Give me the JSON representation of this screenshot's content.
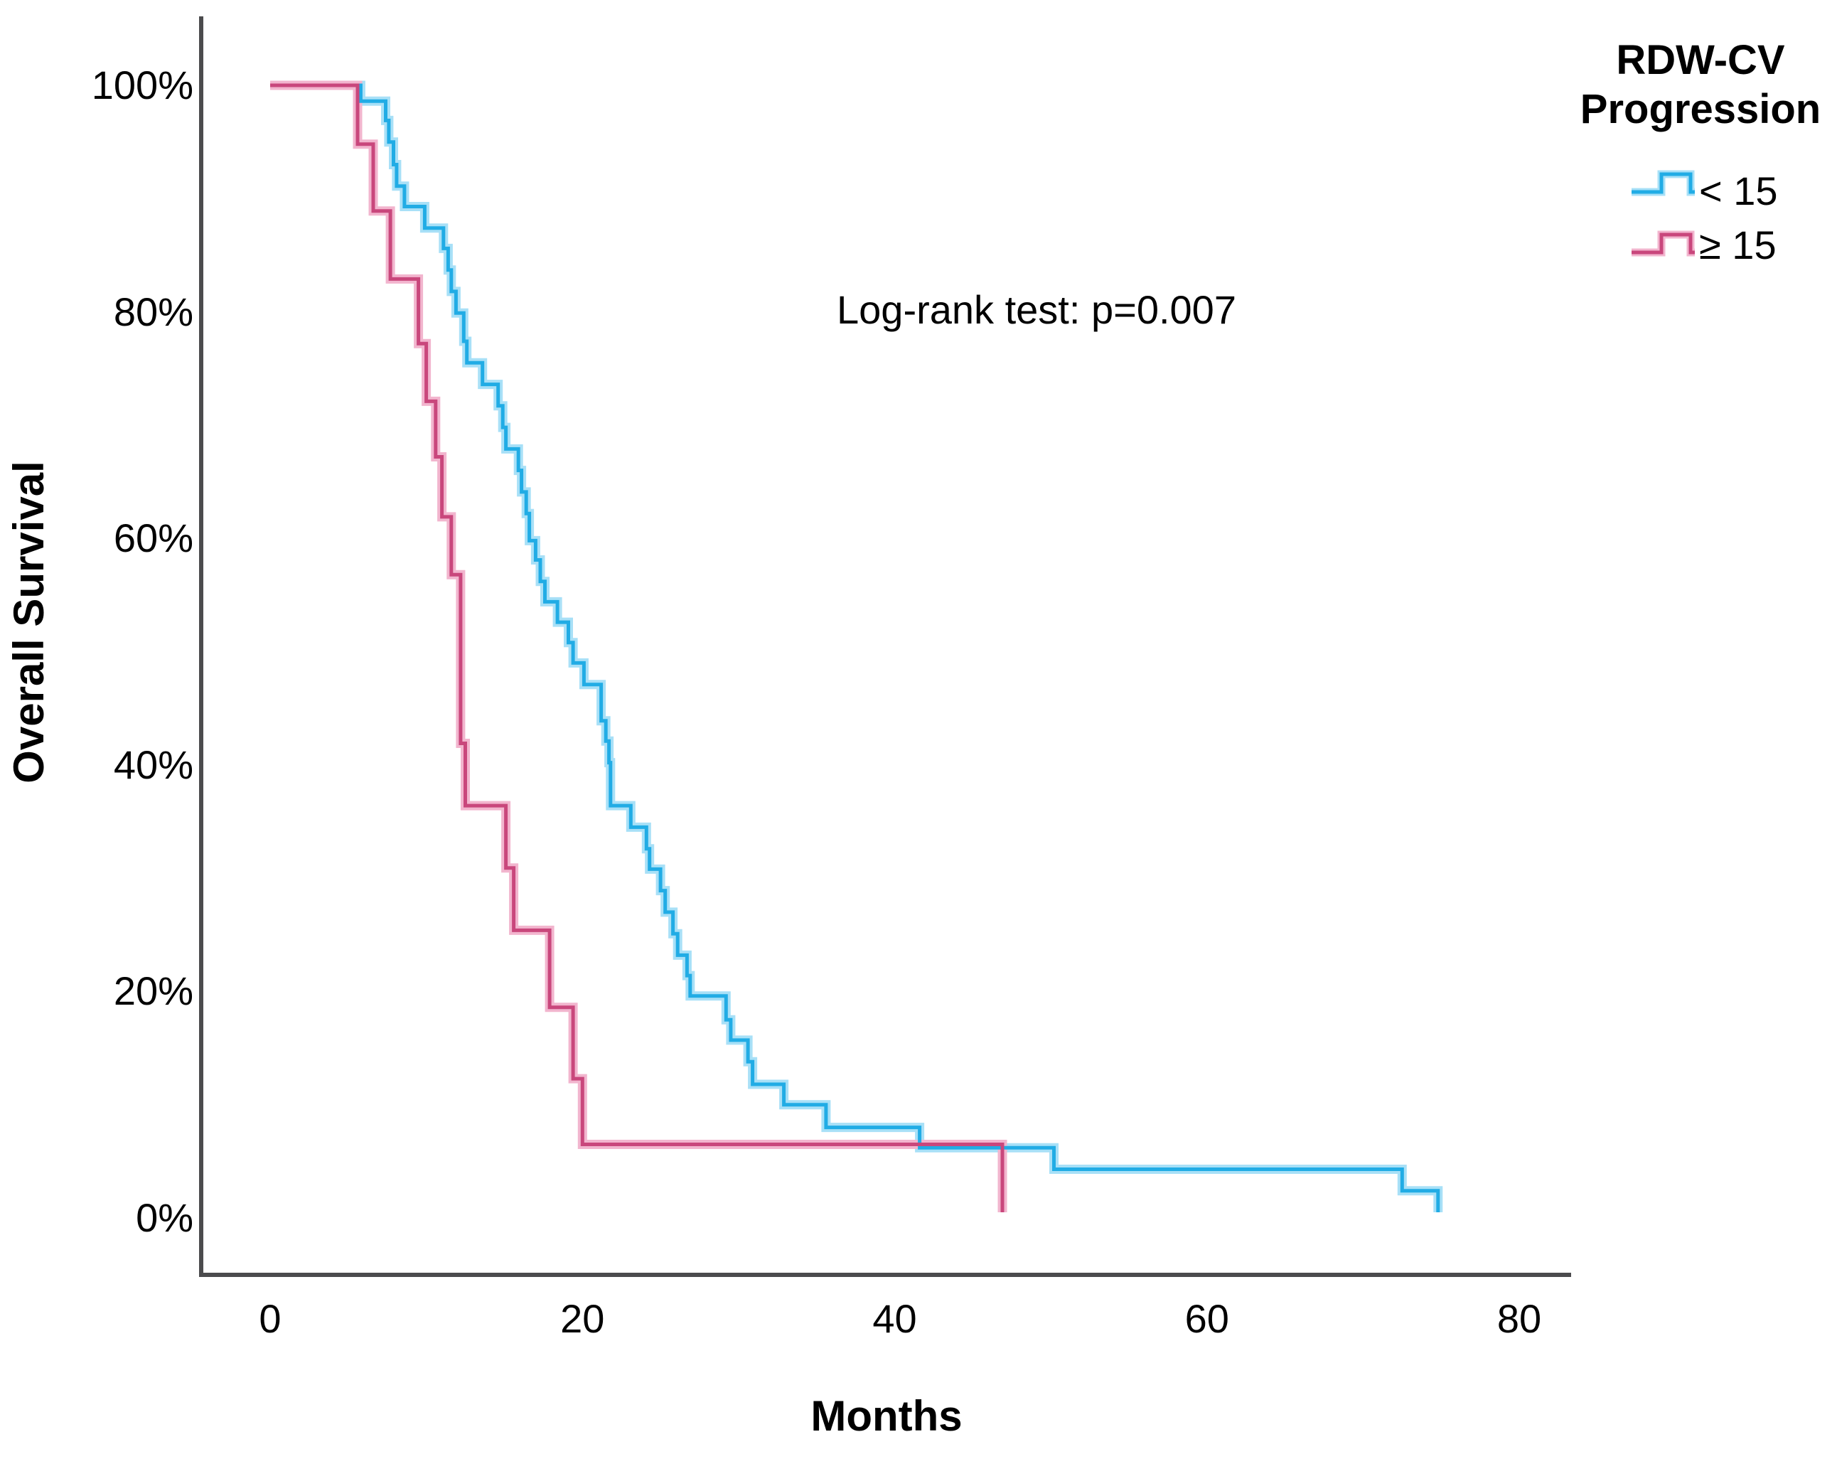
{
  "figure": {
    "y_axis": {
      "label": "Overall Survival",
      "tick_labels": [
        "0%",
        "20%",
        "40%",
        "60%",
        "80%",
        "100%"
      ],
      "tick_values": [
        0,
        20,
        40,
        60,
        80,
        100
      ]
    },
    "x_axis": {
      "label": "Months",
      "tick_labels": [
        "0",
        "20",
        "40",
        "60",
        "80"
      ],
      "tick_values": [
        0,
        20,
        40,
        60,
        80
      ]
    },
    "annotation": "Log-rank test: p=0.007",
    "legend": {
      "title_line1": "RDW-CV",
      "title_line2": "Progression",
      "items": [
        {
          "label": "< 15",
          "color": "#21ACE5",
          "halo": "#A8E0F7"
        },
        {
          "label": "≥ 15",
          "color": "#C9477C",
          "halo": "#F2B5CE"
        }
      ]
    },
    "colors": {
      "axis_line": "#4B4B4D",
      "text": "#000000"
    }
  },
  "chart_data": {
    "type": "line",
    "subtype": "kaplan-meier-step",
    "title": "",
    "xlabel": "Months",
    "ylabel": "Overall Survival",
    "xlim": [
      0,
      83
    ],
    "ylim": [
      0,
      100
    ],
    "grid": false,
    "legend_position": "top-right-outside",
    "annotation": "Log-rank test: p=0.007",
    "series": [
      {
        "name": "< 15",
        "color": "#21ACE5",
        "halo": "#A8E0F7",
        "points": [
          [
            0,
            100
          ],
          [
            5.8,
            98.6
          ],
          [
            7.4,
            96.9
          ],
          [
            7.6,
            95.0
          ],
          [
            7.9,
            93.0
          ],
          [
            8.1,
            91.1
          ],
          [
            8.6,
            89.3
          ],
          [
            9.9,
            87.4
          ],
          [
            11.1,
            85.6
          ],
          [
            11.4,
            83.7
          ],
          [
            11.6,
            81.8
          ],
          [
            11.9,
            79.9
          ],
          [
            12.4,
            77.4
          ],
          [
            12.6,
            75.5
          ],
          [
            13.6,
            73.6
          ],
          [
            14.6,
            71.7
          ],
          [
            14.9,
            69.8
          ],
          [
            15.1,
            67.9
          ],
          [
            15.9,
            66.0
          ],
          [
            16.1,
            64.1
          ],
          [
            16.4,
            62.2
          ],
          [
            16.6,
            59.8
          ],
          [
            17.0,
            58.1
          ],
          [
            17.3,
            56.2
          ],
          [
            17.6,
            54.4
          ],
          [
            18.4,
            52.6
          ],
          [
            19.1,
            50.8
          ],
          [
            19.4,
            49.0
          ],
          [
            20.1,
            47.1
          ],
          [
            21.2,
            43.9
          ],
          [
            21.5,
            42.1
          ],
          [
            21.7,
            40.2
          ],
          [
            21.8,
            36.4
          ],
          [
            23.1,
            34.5
          ],
          [
            24.1,
            32.6
          ],
          [
            24.3,
            30.8
          ],
          [
            25.0,
            28.9
          ],
          [
            25.3,
            27.0
          ],
          [
            25.8,
            25.1
          ],
          [
            26.1,
            23.2
          ],
          [
            26.7,
            21.4
          ],
          [
            26.9,
            19.6
          ],
          [
            29.2,
            17.5
          ],
          [
            29.5,
            15.7
          ],
          [
            30.6,
            13.8
          ],
          [
            30.9,
            11.8
          ],
          [
            32.9,
            10.0
          ],
          [
            35.6,
            8.0
          ],
          [
            41.6,
            6.2
          ],
          [
            50.2,
            4.3
          ],
          [
            72.5,
            2.4
          ],
          [
            74.8,
            0.5
          ]
        ]
      },
      {
        "name": "≥ 15",
        "color": "#C9477C",
        "halo": "#F2B5CE",
        "points": [
          [
            0,
            100
          ],
          [
            5.6,
            94.8
          ],
          [
            6.6,
            88.9
          ],
          [
            7.7,
            82.9
          ],
          [
            9.5,
            77.2
          ],
          [
            10.0,
            72.1
          ],
          [
            10.6,
            67.2
          ],
          [
            11.0,
            61.9
          ],
          [
            11.6,
            56.8
          ],
          [
            12.2,
            41.9
          ],
          [
            12.5,
            36.4
          ],
          [
            15.1,
            30.9
          ],
          [
            15.6,
            25.4
          ],
          [
            17.9,
            18.6
          ],
          [
            19.4,
            12.3
          ],
          [
            20.0,
            6.5
          ],
          [
            46.9,
            0.5
          ]
        ]
      }
    ]
  }
}
